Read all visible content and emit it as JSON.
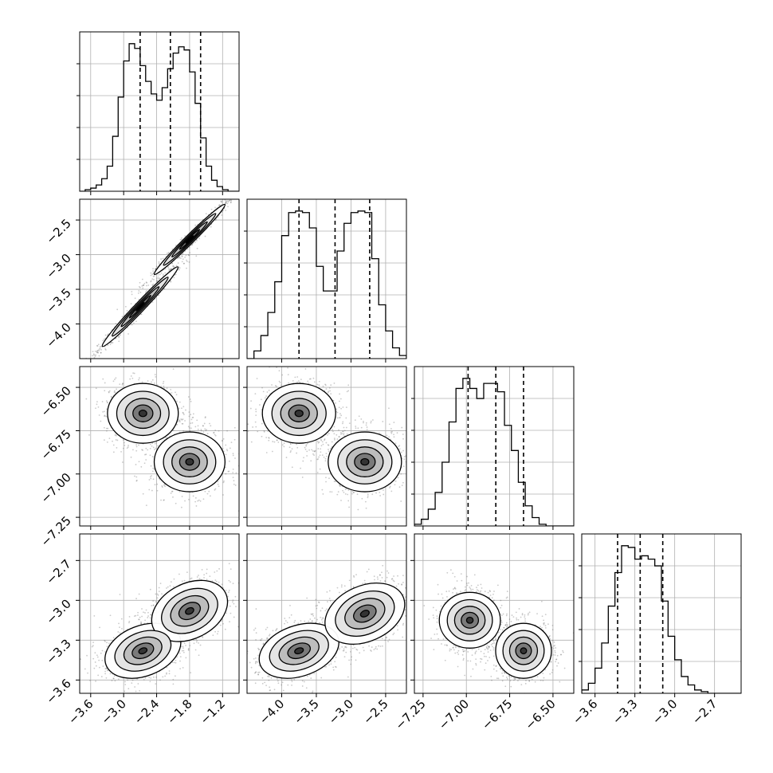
{
  "chart_data": {
    "type": "corner",
    "title": "",
    "grid": true,
    "quantile_lines": "dashed",
    "colors": {
      "line": "#000000",
      "grid": "#b0b0b0",
      "contour_dark": "#2a2a2a",
      "scatter": "#666666"
    },
    "parameters": [
      {
        "index": 0,
        "label": "",
        "range": [
          -3.8,
          -0.9
        ],
        "ticks": [
          -3.6,
          -3.0,
          -2.4,
          -1.8,
          -1.2
        ],
        "tick_labels": [
          "−3.6",
          "−3.0",
          "−2.4",
          "−1.8",
          "−1.2"
        ],
        "quantiles": [
          -2.7,
          -2.15,
          -1.6
        ]
      },
      {
        "index": 1,
        "label": "",
        "range": [
          -4.5,
          -2.2
        ],
        "ticks": [
          -4.0,
          -3.5,
          -3.0,
          -2.5
        ],
        "tick_labels": [
          "−4.0",
          "−3.5",
          "−3.0",
          "−2.5"
        ],
        "quantiles": [
          -3.75,
          -3.23,
          -2.73
        ]
      },
      {
        "index": 2,
        "label": "",
        "range": [
          -7.3,
          -6.38
        ],
        "ticks": [
          -7.25,
          -7.0,
          -6.75,
          -6.5
        ],
        "tick_labels": [
          "−7.25",
          "−7.00",
          "−6.75",
          "−6.50"
        ],
        "quantiles": [
          -6.99,
          -6.83,
          -6.67
        ]
      },
      {
        "index": 3,
        "label": "",
        "range": [
          -3.7,
          -2.5
        ],
        "ticks": [
          -3.6,
          -3.3,
          -3.0,
          -2.7
        ],
        "tick_labels": [
          "−3.6",
          "−3.3",
          "−3.0",
          "−2.7"
        ],
        "quantiles": [
          -3.43,
          -3.26,
          -3.09
        ]
      }
    ],
    "histograms": [
      {
        "param": 0,
        "edges": [
          -3.8,
          -3.7,
          -3.6,
          -3.5,
          -3.4,
          -3.3,
          -3.2,
          -3.1,
          -3.0,
          -2.9,
          -2.8,
          -2.7,
          -2.6,
          -2.5,
          -2.4,
          -2.3,
          -2.2,
          -2.1,
          -2.0,
          -1.9,
          -1.8,
          -1.7,
          -1.6,
          -1.5,
          -1.4,
          -1.3,
          -1.2,
          -1.1,
          -1.0,
          -0.9
        ],
        "counts": [
          0.0,
          0.01,
          0.02,
          0.04,
          0.08,
          0.16,
          0.35,
          0.6,
          0.83,
          0.94,
          0.91,
          0.8,
          0.7,
          0.62,
          0.58,
          0.66,
          0.78,
          0.88,
          0.92,
          0.9,
          0.76,
          0.56,
          0.34,
          0.16,
          0.07,
          0.03,
          0.01,
          0.0,
          0.0
        ]
      },
      {
        "param": 1,
        "edges": [
          -4.5,
          -4.4,
          -4.3,
          -4.2,
          -4.1,
          -4.0,
          -3.9,
          -3.8,
          -3.7,
          -3.6,
          -3.5,
          -3.4,
          -3.3,
          -3.2,
          -3.1,
          -3.0,
          -2.9,
          -2.8,
          -2.7,
          -2.6,
          -2.5,
          -2.4,
          -2.3,
          -2.2
        ],
        "counts": [
          0.0,
          0.05,
          0.15,
          0.3,
          0.5,
          0.8,
          0.95,
          0.96,
          0.95,
          0.85,
          0.6,
          0.44,
          0.44,
          0.7,
          0.88,
          0.95,
          0.96,
          0.95,
          0.65,
          0.35,
          0.18,
          0.07,
          0.02
        ]
      },
      {
        "param": 2,
        "edges": [
          -7.3,
          -7.26,
          -7.22,
          -7.18,
          -7.14,
          -7.1,
          -7.06,
          -7.02,
          -6.98,
          -6.94,
          -6.9,
          -6.86,
          -6.82,
          -6.78,
          -6.74,
          -6.7,
          -6.66,
          -6.62,
          -6.58,
          -6.54,
          -6.5,
          -6.46,
          -6.42,
          -6.38
        ],
        "counts": [
          0.01,
          0.04,
          0.1,
          0.2,
          0.38,
          0.62,
          0.82,
          0.88,
          0.82,
          0.76,
          0.85,
          0.85,
          0.8,
          0.6,
          0.45,
          0.26,
          0.12,
          0.05,
          0.01,
          0.0,
          0.0,
          0.0,
          0.0
        ]
      },
      {
        "param": 3,
        "edges": [
          -3.7,
          -3.65,
          -3.6,
          -3.55,
          -3.5,
          -3.45,
          -3.4,
          -3.35,
          -3.3,
          -3.25,
          -3.2,
          -3.15,
          -3.1,
          -3.05,
          -3.0,
          -2.95,
          -2.9,
          -2.85,
          -2.8,
          -2.75,
          -2.7,
          -2.65,
          -2.6,
          -2.55,
          -2.5
        ],
        "counts": [
          0.02,
          0.06,
          0.15,
          0.3,
          0.52,
          0.72,
          0.88,
          0.87,
          0.8,
          0.82,
          0.8,
          0.76,
          0.55,
          0.34,
          0.2,
          0.1,
          0.05,
          0.02,
          0.01,
          0.0,
          0.0,
          0.0,
          0.0,
          0.0
        ]
      }
    ],
    "panels_2d": [
      {
        "row": 1,
        "col": 0,
        "modes": [
          {
            "x": -2.7,
            "y": -3.75,
            "sx": 0.3,
            "sy": 0.25,
            "rho": 0.985
          },
          {
            "x": -1.8,
            "y": -2.78,
            "sx": 0.28,
            "sy": 0.22,
            "rho": 0.985
          }
        ]
      },
      {
        "row": 2,
        "col": 0,
        "modes": [
          {
            "x": -2.65,
            "y": -6.65,
            "sx": 0.28,
            "sy": 0.075,
            "rho": 0.0
          },
          {
            "x": -1.8,
            "y": -6.93,
            "sx": 0.28,
            "sy": 0.075,
            "rho": 0.0
          }
        ]
      },
      {
        "row": 2,
        "col": 1,
        "modes": [
          {
            "x": -3.75,
            "y": -6.65,
            "sx": 0.23,
            "sy": 0.075,
            "rho": 0.0
          },
          {
            "x": -2.8,
            "y": -6.93,
            "sx": 0.23,
            "sy": 0.075,
            "rho": 0.0
          }
        ]
      },
      {
        "row": 3,
        "col": 0,
        "modes": [
          {
            "x": -2.65,
            "y": -3.38,
            "sx": 0.3,
            "sy": 0.09,
            "rho": 0.3
          },
          {
            "x": -1.8,
            "y": -3.08,
            "sx": 0.3,
            "sy": 0.1,
            "rho": 0.3
          }
        ]
      },
      {
        "row": 3,
        "col": 1,
        "modes": [
          {
            "x": -3.75,
            "y": -3.38,
            "sx": 0.25,
            "sy": 0.09,
            "rho": 0.3
          },
          {
            "x": -2.8,
            "y": -3.1,
            "sx": 0.25,
            "sy": 0.1,
            "rho": 0.3
          }
        ]
      },
      {
        "row": 3,
        "col": 2,
        "modes": [
          {
            "x": -6.98,
            "y": -3.15,
            "sx": 0.07,
            "sy": 0.1,
            "rho": 0.0
          },
          {
            "x": -6.67,
            "y": -3.38,
            "sx": 0.07,
            "sy": 0.09,
            "rho": 0.0
          }
        ]
      }
    ]
  }
}
